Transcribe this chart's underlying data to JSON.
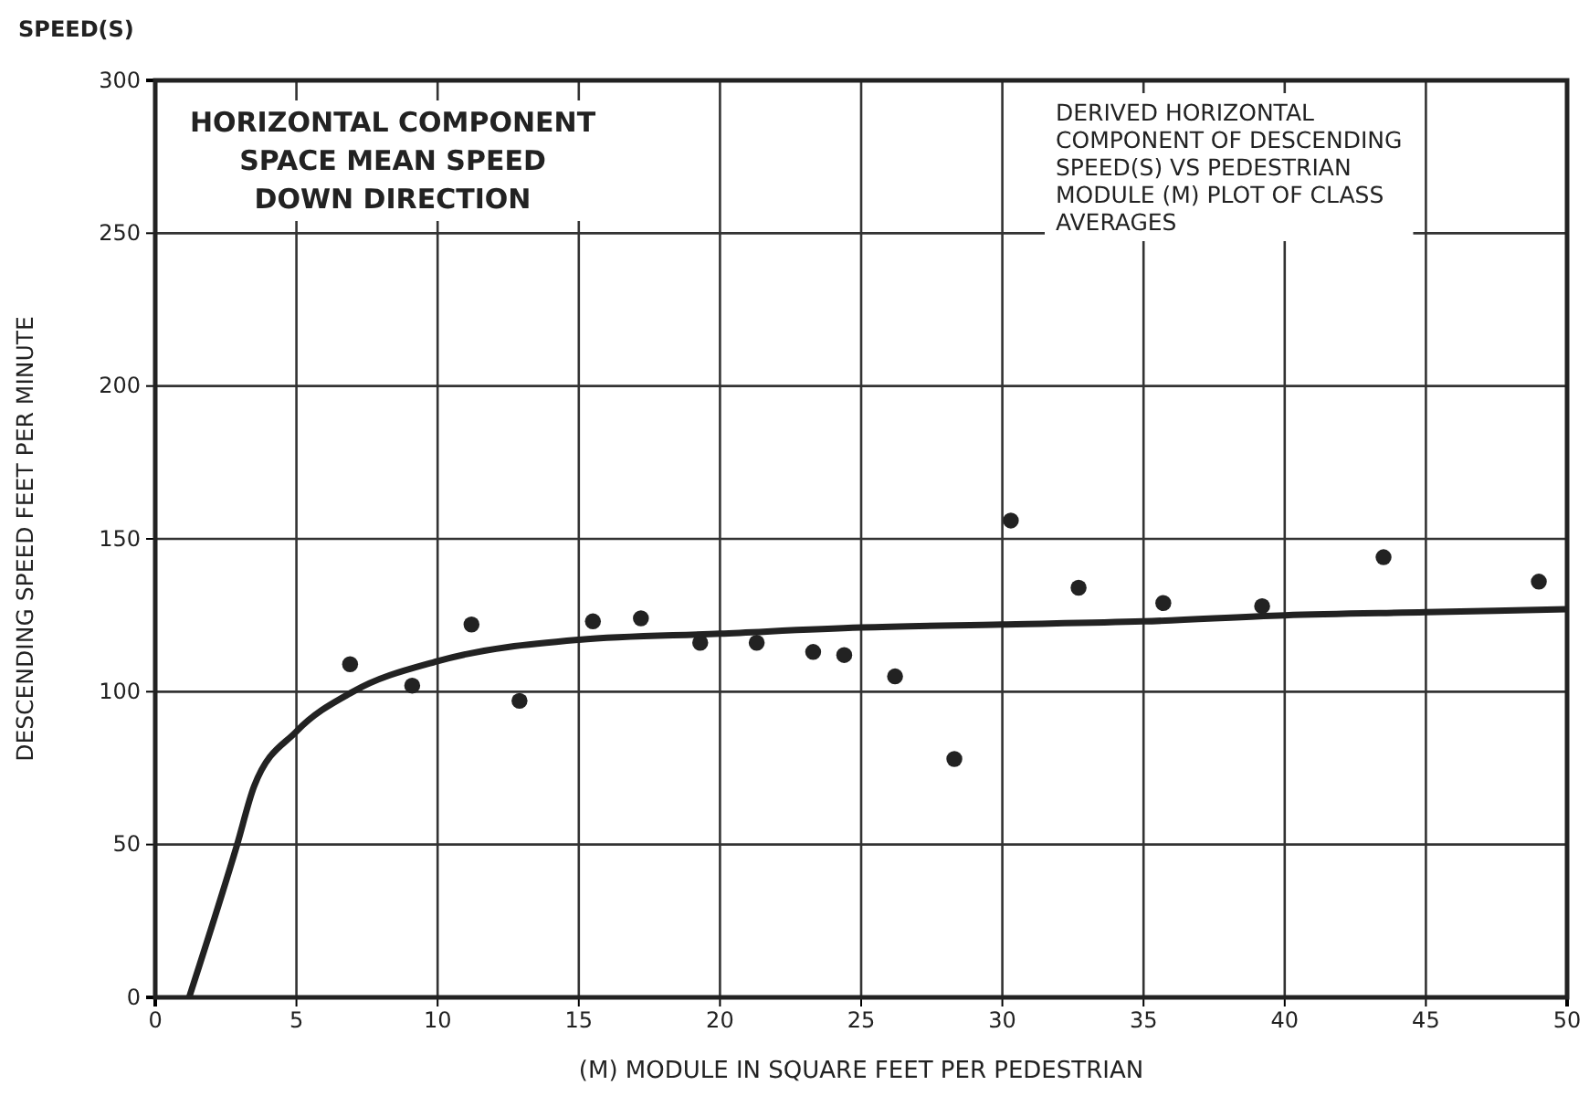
{
  "chart_data": {
    "type": "scatter",
    "title": "HORIZONTAL COMPONENT\nSPACE MEAN SPEED\nDOWN DIRECTION",
    "xlabel": "(M) MODULE IN SQUARE FEET PER PEDESTRIAN",
    "ylabel": "DESCENDING SPEED FEET PER MINUTE",
    "annotations": [
      "SPEED(S)",
      "DERIVED HORIZONTAL\nCOMPONENT OF DESCENDING\nSPEED(S) VS PEDESTRIAN\nMODULE (M) PLOT OF CLASS\nAVERAGES"
    ],
    "xlim": [
      0,
      50
    ],
    "xticks": [
      0,
      5,
      10,
      15,
      20,
      25,
      30,
      35,
      40,
      45,
      50
    ],
    "ylim": [
      0,
      300
    ],
    "yticks": [
      0,
      50,
      100,
      150,
      200,
      250,
      300
    ],
    "grid": true,
    "marker": "circle",
    "series": [
      {
        "type": "scatter",
        "color": "#222222",
        "x": [
          6.9,
          9.1,
          11.2,
          12.9,
          15.5,
          17.2,
          19.3,
          21.3,
          23.3,
          24.4,
          26.2,
          28.3,
          30.3,
          32.7,
          35.7,
          39.2,
          43.5,
          49.0
        ],
        "values": [
          109,
          102,
          122,
          97,
          123,
          124,
          116,
          116,
          113,
          112,
          105,
          78,
          156,
          134,
          129,
          128,
          144,
          136
        ]
      },
      {
        "type": "line",
        "color": "#222222",
        "marker": "none",
        "x": [
          1.2,
          2.9,
          3.5,
          5,
          7,
          10,
          15,
          20,
          25,
          30,
          35,
          40,
          45,
          50
        ],
        "values": [
          0,
          50,
          69,
          87,
          100,
          110,
          117,
          119,
          121,
          122,
          123,
          125,
          126,
          127
        ]
      }
    ]
  }
}
